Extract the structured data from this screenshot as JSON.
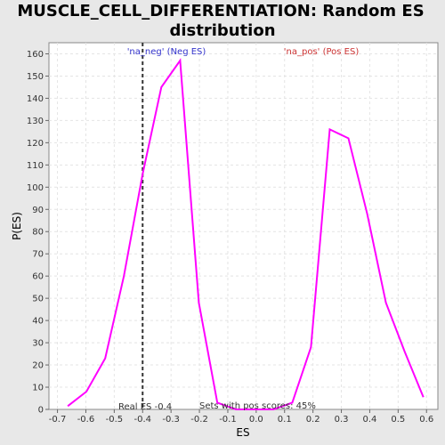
{
  "chart_data": {
    "type": "line",
    "title_line1": "MUSCLE_CELL_DIFFERENTIATION: Random ES",
    "title_line2": "distribution",
    "xlabel": "ES",
    "ylabel": "P(ES)",
    "xlim": [
      -0.73,
      0.64
    ],
    "ylim": [
      0,
      165
    ],
    "x_ticks": [
      -0.7,
      -0.6,
      -0.5,
      -0.4,
      -0.3,
      -0.2,
      -0.1,
      0.0,
      0.1,
      0.2,
      0.3,
      0.4,
      0.5,
      0.6
    ],
    "x_tick_labels": [
      "-0.7",
      "-0.6",
      "-0.5",
      "-0.4",
      "-0.3",
      "-0.2",
      "-0.1",
      "0.0",
      "0.1",
      "0.2",
      "0.3",
      "0.4",
      "0.5",
      "0.6"
    ],
    "y_ticks": [
      0,
      10,
      20,
      30,
      40,
      50,
      60,
      70,
      80,
      90,
      100,
      110,
      120,
      130,
      140,
      150,
      160
    ],
    "grid": true,
    "line_color": "#ff00ff",
    "series": [
      {
        "x": [
          -0.664,
          -0.598,
          -0.532,
          -0.466,
          -0.4,
          -0.334,
          -0.268,
          -0.202,
          -0.137,
          -0.071,
          -0.005,
          0.061,
          0.127,
          0.193,
          0.259,
          0.325,
          0.391,
          0.457,
          0.523,
          0.589
        ],
        "values": [
          1.5,
          8,
          23,
          60,
          106,
          145,
          157,
          48,
          3,
          0,
          0,
          0,
          3,
          28,
          126,
          122,
          88,
          48,
          26,
          5.5
        ]
      }
    ],
    "real_es_value": -0.4,
    "real_es_label": "Real ES -0.4",
    "neg_label": "'na_neg' (Neg ES)",
    "neg_color": "#3333cc",
    "pos_label": "'na_pos' (Pos ES)",
    "pos_color": "#cc3333",
    "pos_scores_label": "Sets with pos scores: 45%"
  }
}
